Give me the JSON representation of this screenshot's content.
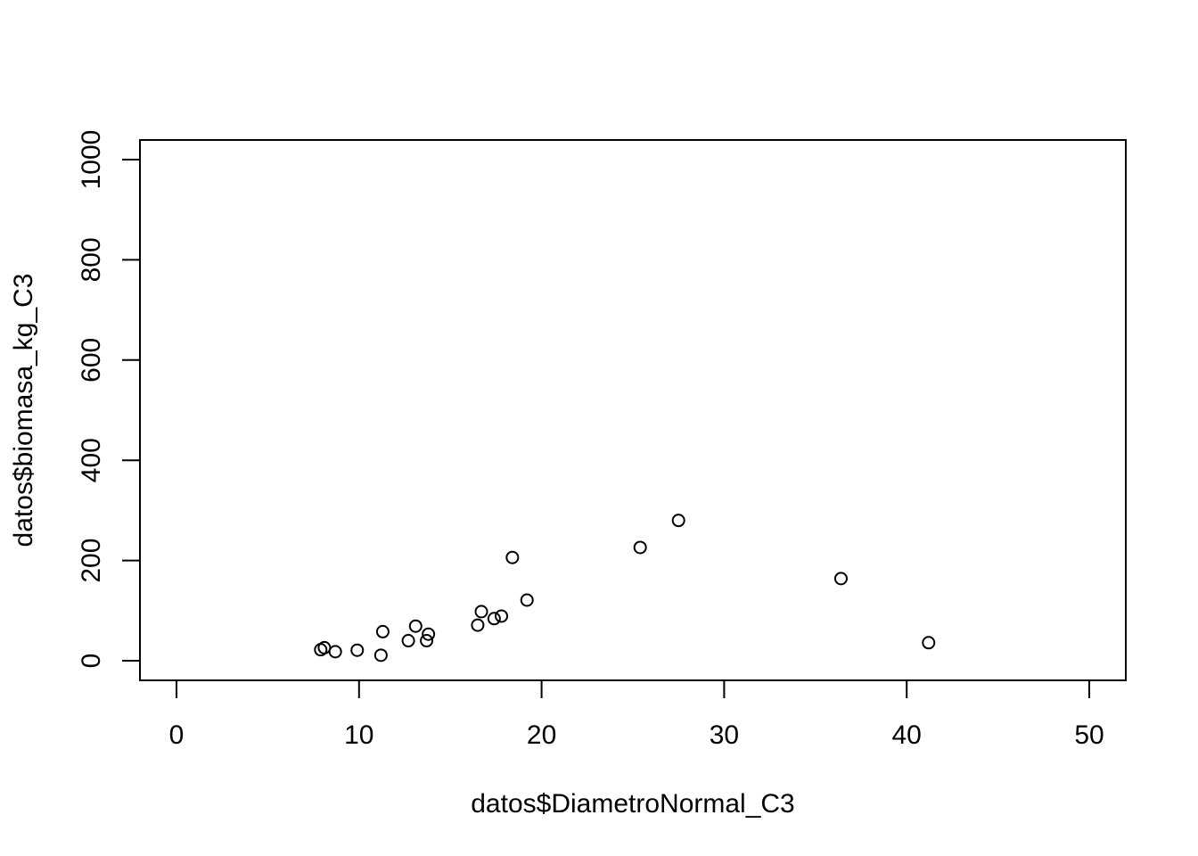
{
  "chart_data": {
    "type": "scatter",
    "title": "",
    "xlabel": "datos$DiametroNormal_C3",
    "ylabel": "datos$biomasa_kg_C3",
    "xlim": [
      0,
      50
    ],
    "ylim": [
      0,
      1000
    ],
    "x_ticks": [
      0,
      10,
      20,
      30,
      40,
      50
    ],
    "y_ticks": [
      0,
      200,
      400,
      600,
      800,
      1000
    ],
    "x_tick_labels": [
      "0",
      "10",
      "20",
      "30",
      "40",
      "50"
    ],
    "y_tick_labels": [
      "0",
      "200",
      "400",
      "600",
      "800",
      "1000"
    ],
    "grid": false,
    "marker": "open-circle",
    "points": [
      {
        "x": 7.9,
        "y": 22
      },
      {
        "x": 8.1,
        "y": 26
      },
      {
        "x": 8.7,
        "y": 18
      },
      {
        "x": 9.9,
        "y": 21
      },
      {
        "x": 11.2,
        "y": 11
      },
      {
        "x": 11.3,
        "y": 58
      },
      {
        "x": 12.7,
        "y": 40
      },
      {
        "x": 13.1,
        "y": 69
      },
      {
        "x": 13.7,
        "y": 40
      },
      {
        "x": 13.8,
        "y": 53
      },
      {
        "x": 16.5,
        "y": 71
      },
      {
        "x": 16.7,
        "y": 98
      },
      {
        "x": 17.4,
        "y": 84
      },
      {
        "x": 17.8,
        "y": 89
      },
      {
        "x": 18.4,
        "y": 206
      },
      {
        "x": 19.2,
        "y": 121
      },
      {
        "x": 25.4,
        "y": 226
      },
      {
        "x": 27.5,
        "y": 280
      },
      {
        "x": 36.4,
        "y": 164
      },
      {
        "x": 41.2,
        "y": 36
      }
    ]
  }
}
